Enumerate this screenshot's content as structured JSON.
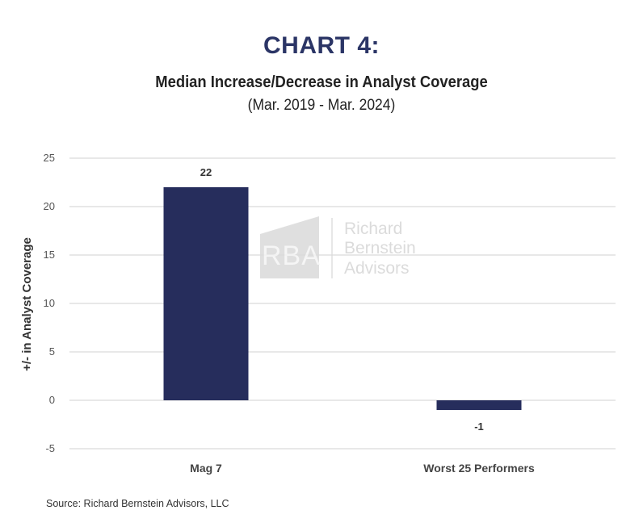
{
  "header": {
    "kicker": "CHART 4:",
    "title": "Median Increase/Decrease in Analyst Coverage",
    "subtitle": "(Mar. 2019 - Mar. 2024)"
  },
  "watermark": {
    "logo": "RBA",
    "line1": "Richard",
    "line2": "Bernstein",
    "line3": "Advisors"
  },
  "source": "Source: Richard Bernstein Advisors, LLC",
  "chart_data": {
    "type": "bar",
    "categories": [
      "Mag 7",
      "Worst 25 Performers"
    ],
    "values": [
      22,
      -1
    ],
    "data_labels": [
      "22",
      "-1"
    ],
    "ylabel": "+/- in Analyst Coverage",
    "xlabel": "",
    "ylim": [
      -5,
      25
    ],
    "yticks": [
      -5,
      0,
      5,
      10,
      15,
      20,
      25
    ],
    "grid": true,
    "bar_color": "#262d5c",
    "grid_color": "#d9d9d9"
  }
}
